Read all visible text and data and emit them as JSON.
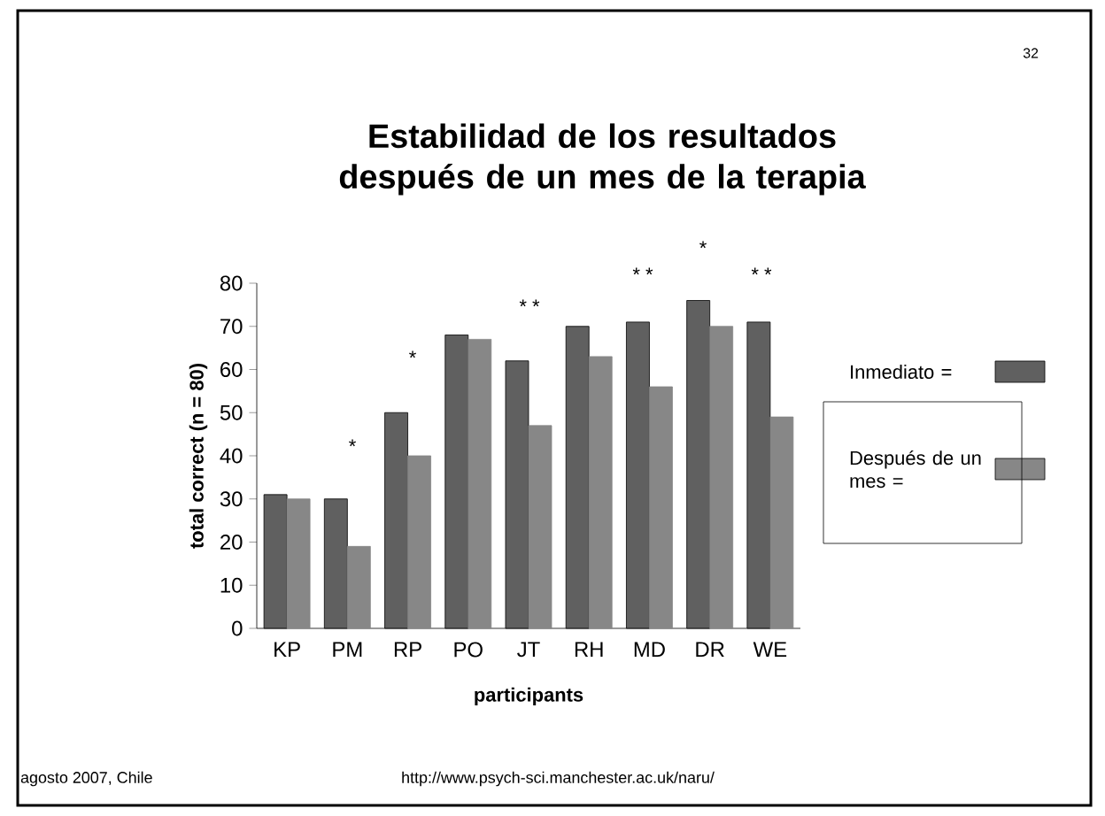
{
  "chart_data": {
    "type": "bar",
    "title": "Estabilidad de los resultados después de un mes de la terapia",
    "xlabel": "participants",
    "ylabel": "total correct (n = 80)",
    "categories": [
      "KP",
      "PM",
      "RP",
      "PO",
      "JT",
      "RH",
      "MD",
      "DR",
      "WE"
    ],
    "series": [
      {
        "name": "Inmediato =",
        "color": "#606060",
        "values": [
          31,
          30,
          50,
          68,
          62,
          70,
          71,
          76,
          71
        ]
      },
      {
        "name": "Después de un mes =",
        "color": "#878787",
        "values": [
          30,
          19,
          40,
          67,
          47,
          63,
          56,
          70,
          49
        ]
      }
    ],
    "ylim": [
      0,
      80
    ],
    "yticks": [
      0,
      10,
      20,
      30,
      40,
      50,
      60,
      70,
      80
    ],
    "legend": "right",
    "annotations": [
      "*",
      "*",
      "* *",
      "* *",
      "*",
      "* *",
      "32",
      "agosto 2007, Chile",
      "http://www.psych-sci.manchester.ac.uk/naru/"
    ]
  }
}
